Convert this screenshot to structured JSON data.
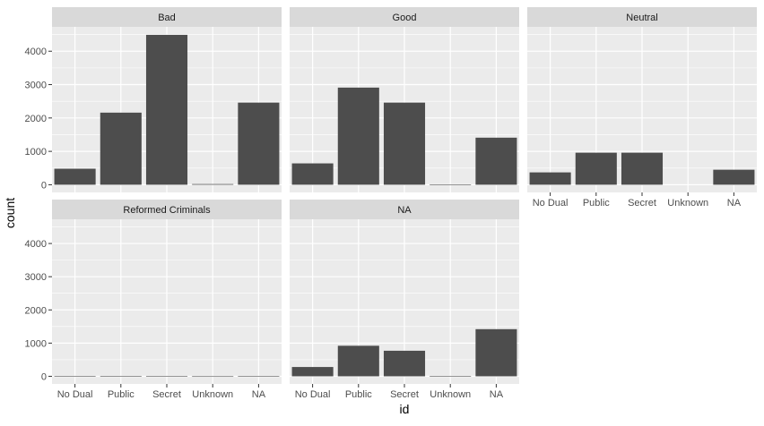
{
  "chart_data": {
    "type": "bar",
    "layout": "facet_wrap",
    "xlabel": "id",
    "ylabel": "count",
    "ylim": [
      -230,
      4730
    ],
    "yticks": [
      0,
      1000,
      2000,
      3000,
      4000
    ],
    "categories": [
      "No Dual",
      "Public",
      "Secret",
      "Unknown",
      "NA"
    ],
    "colors": {
      "bar": "#4d4d4d",
      "panel_bg": "#ebebeb",
      "strip_bg": "#d9d9d9",
      "grid": "#ffffff",
      "text": "#4d4d4d",
      "strip_text": "#1a1a1a"
    },
    "facets": [
      {
        "label": "Bad",
        "values": [
          480,
          2160,
          4490,
          20,
          2460
        ]
      },
      {
        "label": "Good",
        "values": [
          640,
          2910,
          2460,
          10,
          1410
        ]
      },
      {
        "label": "Neutral",
        "values": [
          370,
          960,
          960,
          0,
          450
        ]
      },
      {
        "label": "Reformed Criminals",
        "values": [
          2,
          4,
          10,
          1,
          2
        ]
      },
      {
        "label": "NA",
        "values": [
          280,
          920,
          770,
          10,
          1420
        ]
      }
    ]
  }
}
